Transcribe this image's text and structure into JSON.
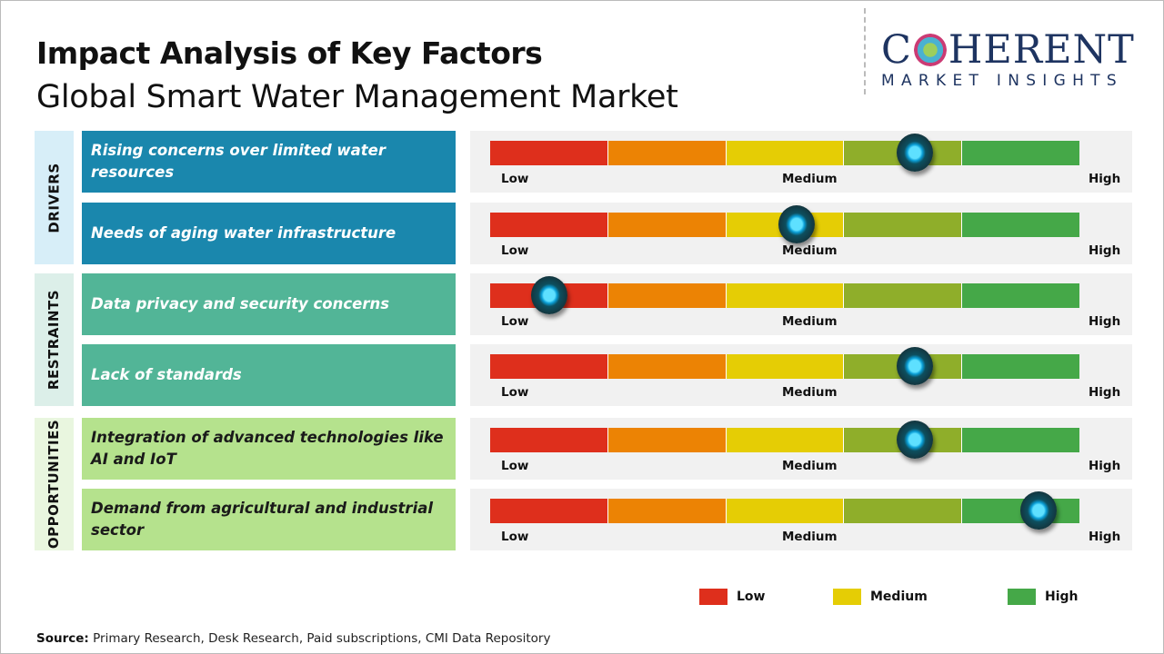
{
  "header": {
    "title": "Impact Analysis of Key Factors",
    "subtitle": "Global Smart Water Management Market"
  },
  "logo": {
    "main_left": "C",
    "main_right": "HERENT",
    "sub": "MARKET INSIGHTS"
  },
  "colors": {
    "segments": [
      "#de2f1c",
      "#ec8304",
      "#e5cd05",
      "#8fae2a",
      "#45a848"
    ],
    "drivers_bg": "#d7eef8",
    "drivers_item": "#1a87ad",
    "restraints_bg": "#dcefe9",
    "restraints_item": "#52b597",
    "opportunities_bg": "#e9f6df",
    "opportunities_item": "#b5e28d"
  },
  "categories": [
    {
      "label": "DRIVERS",
      "items": [
        {
          "text": "Rising concerns over limited water resources",
          "impact": 0.72
        },
        {
          "text": "Needs of aging water infrastructure",
          "impact": 0.52
        }
      ]
    },
    {
      "label": "RESTRAINTS",
      "items": [
        {
          "text": "Data privacy and security concerns",
          "impact": 0.1
        },
        {
          "text": "Lack of standards",
          "impact": 0.72
        }
      ]
    },
    {
      "label": "OPPORTUNITIES",
      "items": [
        {
          "text": "Integration of advanced technologies like AI and IoT",
          "impact": 0.72
        },
        {
          "text": "Demand from agricultural and industrial sector",
          "impact": 0.93
        }
      ]
    }
  ],
  "scale": {
    "low": "Low",
    "medium": "Medium",
    "high": "High"
  },
  "legend": [
    {
      "label": "Low",
      "color": "#de2f1c"
    },
    {
      "label": "Medium",
      "color": "#e5cd05"
    },
    {
      "label": "High",
      "color": "#45a848"
    }
  ],
  "source": {
    "label": "Source:",
    "text": " Primary Research, Desk Research, Paid subscriptions, CMI Data Repository"
  }
}
